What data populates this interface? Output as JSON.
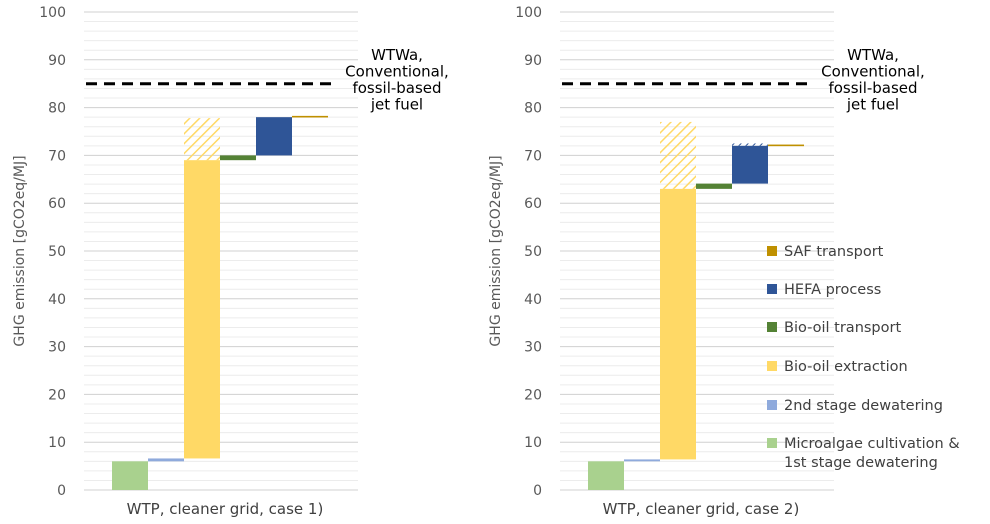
{
  "chart_data": [
    {
      "type": "waterfall",
      "xlabel": "WTP, cleaner grid, case 1)",
      "ylabel": "GHG emission [gCO2eq/MJ]",
      "ylim": [
        0,
        100
      ],
      "yticks": [
        0,
        10,
        20,
        30,
        40,
        50,
        60,
        70,
        80,
        90,
        100
      ],
      "reference_line": {
        "value": 85,
        "label": [
          "WTWa,",
          "Conventional,",
          "fossil-based",
          "jet fuel"
        ]
      },
      "bars": [
        {
          "stage": "Microalgae cultivation & 1st stage dewatering",
          "start": 0,
          "end": 6.0
        },
        {
          "stage": "2nd stage dewatering",
          "start": 6.0,
          "end": 6.6
        },
        {
          "stage": "Bio-oil extraction",
          "start": 6.6,
          "end": 69.0,
          "hatched_to": 77.8
        },
        {
          "stage": "Bio-oil transport",
          "start": 69.0,
          "end": 70.0
        },
        {
          "stage": "HEFA process",
          "start": 70.0,
          "end": 78.0
        },
        {
          "stage": "SAF transport",
          "start": 78.0,
          "end": 78.2
        }
      ]
    },
    {
      "type": "waterfall",
      "xlabel": "WTP, cleaner grid, case 2)",
      "ylabel": "GHG emission [gCO2eq/MJ]",
      "ylim": [
        0,
        100
      ],
      "yticks": [
        0,
        10,
        20,
        30,
        40,
        50,
        60,
        70,
        80,
        90,
        100
      ],
      "reference_line": {
        "value": 85,
        "label": [
          "WTWa,",
          "Conventional,",
          "fossil-based",
          "jet fuel"
        ]
      },
      "bars": [
        {
          "stage": "Microalgae cultivation & 1st stage dewatering",
          "start": 0,
          "end": 6.0
        },
        {
          "stage": "2nd stage dewatering",
          "start": 6.0,
          "end": 6.4
        },
        {
          "stage": "Bio-oil extraction",
          "start": 6.4,
          "end": 63.0,
          "hatched_to": 77.0
        },
        {
          "stage": "Bio-oil transport",
          "start": 63.0,
          "end": 64.1
        },
        {
          "stage": "HEFA process",
          "start": 64.1,
          "end": 72.0,
          "hatched_to": 72.5
        },
        {
          "stage": "SAF transport",
          "start": 72.0,
          "end": 72.2
        }
      ]
    }
  ],
  "legend": [
    {
      "key": "saf",
      "label": [
        "SAF transport"
      ],
      "color": "#bf9000"
    },
    {
      "key": "hefa",
      "label": [
        "HEFA process"
      ],
      "color": "#2f5597"
    },
    {
      "key": "biotrans",
      "label": [
        "Bio-oil transport"
      ],
      "color": "#548235"
    },
    {
      "key": "extraction",
      "label": [
        "Bio-oil extraction"
      ],
      "color": "#ffd966"
    },
    {
      "key": "dewater2",
      "label": [
        "2nd stage dewatering"
      ],
      "color": "#8faadc"
    },
    {
      "key": "cultivation",
      "label": [
        "Microalgae cultivation &",
        "1st stage dewatering"
      ],
      "color": "#a9d18e"
    }
  ],
  "stage_colors": {
    "Microalgae cultivation & 1st stage dewatering": "#a9d18e",
    "2nd stage dewatering": "#8faadc",
    "Bio-oil extraction": "#ffd966",
    "Bio-oil transport": "#548235",
    "HEFA process": "#2f5597",
    "SAF transport": "#bf9000"
  }
}
